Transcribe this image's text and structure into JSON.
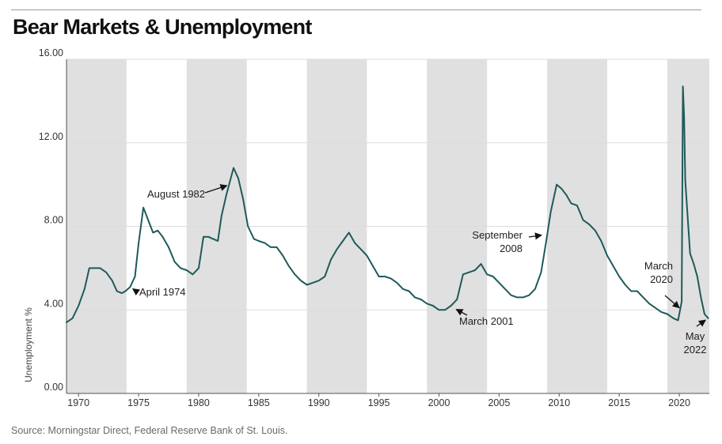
{
  "chart_data": {
    "type": "line",
    "title": "Bear Markets & Unemployment",
    "ylabel": "Unemployment %",
    "xlabel": "",
    "xlim": [
      1969,
      2022.5
    ],
    "ylim": [
      0,
      16
    ],
    "y_ticks": [
      "0.00",
      "4.00",
      "8.00",
      "12.00",
      "16.00"
    ],
    "x_ticks": [
      "1970",
      "1975",
      "1980",
      "1985",
      "1990",
      "1995",
      "2000",
      "2005",
      "2010",
      "2015",
      "2020"
    ],
    "grid": "horizontal",
    "colors": {
      "line": "#1f5a5a",
      "band": "#e0e0e0",
      "grid": "#dcdcdc",
      "axis": "#555555"
    },
    "shaded_bands": [
      [
        1969,
        1974
      ],
      [
        1979,
        1984
      ],
      [
        1989,
        1994
      ],
      [
        1999,
        2004
      ],
      [
        2009,
        2014
      ],
      [
        2019,
        2022.5
      ]
    ],
    "series": [
      {
        "values": [
          [
            1969.0,
            3.4
          ],
          [
            1969.5,
            3.6
          ],
          [
            1970.0,
            4.2
          ],
          [
            1970.5,
            5.0
          ],
          [
            1970.9,
            6.0
          ],
          [
            1971.3,
            6.0
          ],
          [
            1971.8,
            6.0
          ],
          [
            1972.3,
            5.8
          ],
          [
            1972.8,
            5.4
          ],
          [
            1973.2,
            4.9
          ],
          [
            1973.6,
            4.8
          ],
          [
            1973.9,
            4.9
          ],
          [
            1974.3,
            5.1
          ],
          [
            1974.7,
            5.6
          ],
          [
            1975.0,
            7.2
          ],
          [
            1975.4,
            8.9
          ],
          [
            1975.8,
            8.3
          ],
          [
            1976.2,
            7.7
          ],
          [
            1976.6,
            7.8
          ],
          [
            1977.0,
            7.5
          ],
          [
            1977.5,
            7.0
          ],
          [
            1978.0,
            6.3
          ],
          [
            1978.5,
            6.0
          ],
          [
            1979.0,
            5.9
          ],
          [
            1979.5,
            5.7
          ],
          [
            1980.0,
            6.0
          ],
          [
            1980.4,
            7.5
          ],
          [
            1980.8,
            7.5
          ],
          [
            1981.2,
            7.4
          ],
          [
            1981.6,
            7.3
          ],
          [
            1981.9,
            8.5
          ],
          [
            1982.3,
            9.5
          ],
          [
            1982.9,
            10.8
          ],
          [
            1983.3,
            10.3
          ],
          [
            1983.7,
            9.3
          ],
          [
            1984.1,
            8.0
          ],
          [
            1984.6,
            7.4
          ],
          [
            1985.0,
            7.3
          ],
          [
            1985.5,
            7.2
          ],
          [
            1986.0,
            7.0
          ],
          [
            1986.5,
            7.0
          ],
          [
            1987.0,
            6.6
          ],
          [
            1987.5,
            6.1
          ],
          [
            1988.0,
            5.7
          ],
          [
            1988.5,
            5.4
          ],
          [
            1989.0,
            5.2
          ],
          [
            1989.5,
            5.3
          ],
          [
            1990.0,
            5.4
          ],
          [
            1990.5,
            5.6
          ],
          [
            1991.0,
            6.4
          ],
          [
            1991.5,
            6.9
          ],
          [
            1992.0,
            7.3
          ],
          [
            1992.5,
            7.7
          ],
          [
            1993.0,
            7.2
          ],
          [
            1993.5,
            6.9
          ],
          [
            1994.0,
            6.6
          ],
          [
            1994.5,
            6.1
          ],
          [
            1995.0,
            5.6
          ],
          [
            1995.5,
            5.6
          ],
          [
            1996.0,
            5.5
          ],
          [
            1996.5,
            5.3
          ],
          [
            1997.0,
            5.0
          ],
          [
            1997.5,
            4.9
          ],
          [
            1998.0,
            4.6
          ],
          [
            1998.5,
            4.5
          ],
          [
            1999.0,
            4.3
          ],
          [
            1999.5,
            4.2
          ],
          [
            2000.0,
            4.0
          ],
          [
            2000.5,
            4.0
          ],
          [
            2001.0,
            4.2
          ],
          [
            2001.5,
            4.5
          ],
          [
            2002.0,
            5.7
          ],
          [
            2002.5,
            5.8
          ],
          [
            2003.0,
            5.9
          ],
          [
            2003.5,
            6.2
          ],
          [
            2004.0,
            5.7
          ],
          [
            2004.5,
            5.6
          ],
          [
            2005.0,
            5.3
          ],
          [
            2005.5,
            5.0
          ],
          [
            2006.0,
            4.7
          ],
          [
            2006.5,
            4.6
          ],
          [
            2007.0,
            4.6
          ],
          [
            2007.5,
            4.7
          ],
          [
            2008.0,
            5.0
          ],
          [
            2008.5,
            5.8
          ],
          [
            2008.9,
            7.2
          ],
          [
            2009.3,
            8.7
          ],
          [
            2009.8,
            10.0
          ],
          [
            2010.2,
            9.8
          ],
          [
            2010.6,
            9.5
          ],
          [
            2011.0,
            9.1
          ],
          [
            2011.5,
            9.0
          ],
          [
            2012.0,
            8.3
          ],
          [
            2012.5,
            8.1
          ],
          [
            2013.0,
            7.8
          ],
          [
            2013.5,
            7.3
          ],
          [
            2014.0,
            6.6
          ],
          [
            2014.5,
            6.1
          ],
          [
            2015.0,
            5.6
          ],
          [
            2015.5,
            5.2
          ],
          [
            2016.0,
            4.9
          ],
          [
            2016.5,
            4.9
          ],
          [
            2017.0,
            4.6
          ],
          [
            2017.5,
            4.3
          ],
          [
            2018.0,
            4.1
          ],
          [
            2018.5,
            3.9
          ],
          [
            2019.0,
            3.8
          ],
          [
            2019.5,
            3.6
          ],
          [
            2019.9,
            3.5
          ],
          [
            2020.2,
            4.4
          ],
          [
            2020.3,
            14.7
          ],
          [
            2020.4,
            13.3
          ],
          [
            2020.5,
            10.2
          ],
          [
            2020.7,
            8.4
          ],
          [
            2020.9,
            6.7
          ],
          [
            2021.2,
            6.2
          ],
          [
            2021.5,
            5.6
          ],
          [
            2021.8,
            4.6
          ],
          [
            2022.1,
            3.8
          ],
          [
            2022.4,
            3.6
          ]
        ]
      }
    ],
    "annotations": [
      {
        "lines": [
          "April 1974"
        ],
        "x": 1974.3,
        "y": 5.1
      },
      {
        "lines": [
          "August 1982"
        ],
        "x": 1982.6,
        "y": 10.0
      },
      {
        "lines": [
          "March 2001"
        ],
        "x": 2001.2,
        "y": 4.1
      },
      {
        "lines": [
          "September",
          "2008"
        ],
        "x": 2008.8,
        "y": 7.6
      },
      {
        "lines": [
          "March",
          "2020"
        ],
        "x": 2020.2,
        "y": 4.0
      },
      {
        "lines": [
          "May",
          "2022"
        ],
        "x": 2022.4,
        "y": 3.6
      }
    ]
  },
  "source_note": "Source: Morningstar Direct, Federal Reserve Bank of St. Louis."
}
